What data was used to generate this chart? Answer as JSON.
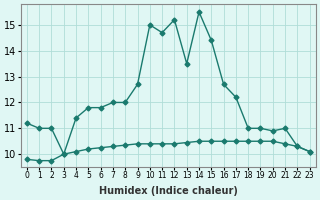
{
  "xlabel": "Humidex (Indice chaleur)",
  "x": [
    0,
    1,
    2,
    3,
    4,
    5,
    6,
    7,
    8,
    9,
    10,
    11,
    12,
    13,
    14,
    15,
    16,
    17,
    18,
    19,
    20,
    21,
    22,
    23
  ],
  "line1_y": [
    11.2,
    11.0,
    11.0,
    10.0,
    11.4,
    11.8,
    11.8,
    12.0,
    12.0,
    12.7,
    15.0,
    14.7,
    15.2,
    13.5,
    15.5,
    14.4,
    12.7,
    12.2,
    11.0,
    11.0,
    10.9,
    11.0,
    10.3,
    10.1
  ],
  "line2_y": [
    9.8,
    9.75,
    9.75,
    10.0,
    10.1,
    10.2,
    10.25,
    10.3,
    10.35,
    10.4,
    10.4,
    10.4,
    10.4,
    10.45,
    10.5,
    10.5,
    10.5,
    10.5,
    10.5,
    10.5,
    10.5,
    10.4,
    10.3,
    10.1
  ],
  "line_color": "#1a7a6e",
  "bg_color": "#e0f7f4",
  "grid_color": "#b0ddd8",
  "ylim": [
    9.5,
    15.8
  ],
  "xlim_min": -0.5,
  "xlim_max": 23.5,
  "yticks": [
    10,
    11,
    12,
    13,
    14,
    15
  ],
  "xtick_labels": [
    "0",
    "1",
    "2",
    "3",
    "4",
    "5",
    "6",
    "7",
    "8",
    "9",
    "10",
    "11",
    "12",
    "13",
    "14",
    "15",
    "16",
    "17",
    "18",
    "19",
    "20",
    "21",
    "22",
    "23"
  ]
}
